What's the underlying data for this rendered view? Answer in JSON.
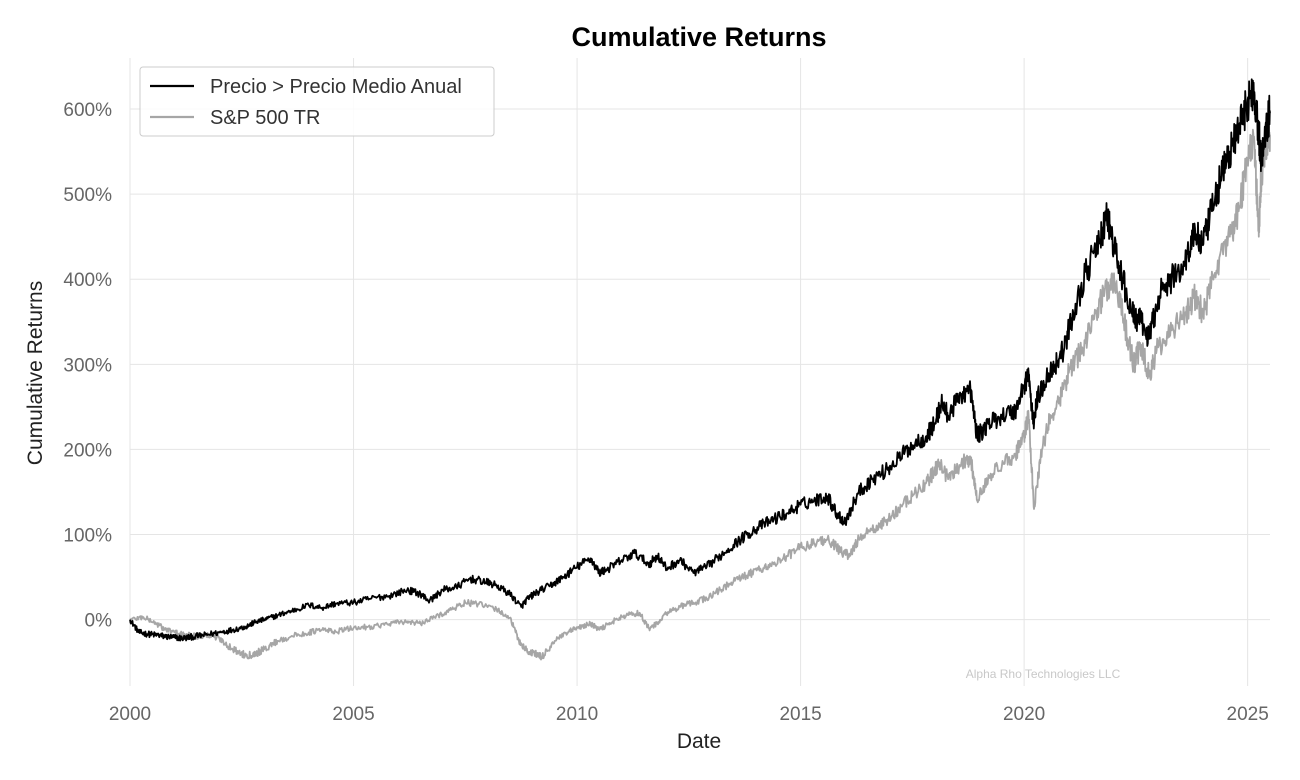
{
  "chart_data": {
    "type": "line",
    "title": "Cumulative Returns",
    "xlabel": "Date",
    "ylabel": "Cumulative Returns",
    "xlim": [
      2000.0,
      2025.5
    ],
    "ylim": [
      -78,
      660
    ],
    "x_ticks": [
      2000,
      2005,
      2010,
      2015,
      2020,
      2025
    ],
    "x_tick_labels": [
      "2000",
      "2005",
      "2010",
      "2015",
      "2020",
      "2025"
    ],
    "y_ticks": [
      0,
      100,
      200,
      300,
      400,
      500,
      600
    ],
    "y_tick_labels": [
      "0%",
      "100%",
      "200%",
      "300%",
      "400%",
      "500%",
      "600%"
    ],
    "grid": true,
    "legend_position": "top-left",
    "watermark": "Alpha Rho Technologies LLC",
    "series": [
      {
        "name": "Precio > Precio Medio Anual",
        "color": "#000000",
        "x": [
          2000.0,
          2000.2,
          2000.4,
          2000.6,
          2000.8,
          2001.0,
          2001.2,
          2001.4,
          2001.7,
          2002.0,
          2002.3,
          2002.6,
          2002.8,
          2003.0,
          2003.3,
          2003.6,
          2004.0,
          2004.3,
          2004.6,
          2005.0,
          2005.4,
          2005.8,
          2006.2,
          2006.5,
          2006.7,
          2007.0,
          2007.3,
          2007.6,
          2007.9,
          2008.2,
          2008.5,
          2008.75,
          2008.9,
          2009.1,
          2009.4,
          2009.7,
          2010.0,
          2010.3,
          2010.5,
          2010.7,
          2011.0,
          2011.3,
          2011.6,
          2011.8,
          2012.0,
          2012.3,
          2012.6,
          2012.9,
          2013.2,
          2013.5,
          2013.8,
          2014.1,
          2014.4,
          2014.7,
          2015.0,
          2015.3,
          2015.6,
          2015.8,
          2016.0,
          2016.3,
          2016.6,
          2016.9,
          2017.2,
          2017.5,
          2017.8,
          2018.0,
          2018.15,
          2018.3,
          2018.6,
          2018.8,
          2018.95,
          2019.2,
          2019.5,
          2019.8,
          2020.0,
          2020.1,
          2020.2,
          2020.3,
          2020.5,
          2020.7,
          2020.9,
          2021.1,
          2021.4,
          2021.7,
          2021.85,
          2022.0,
          2022.2,
          2022.4,
          2022.6,
          2022.8,
          2023.0,
          2023.3,
          2023.6,
          2023.8,
          2024.0,
          2024.2,
          2024.4,
          2024.6,
          2024.8,
          2025.0,
          2025.15,
          2025.25,
          2025.3,
          2025.4,
          2025.5
        ],
        "values": [
          0,
          -15,
          -17,
          -18,
          -20,
          -21,
          -22,
          -20,
          -18,
          -15,
          -12,
          -8,
          -3,
          0,
          5,
          10,
          17,
          14,
          19,
          20,
          25,
          28,
          35,
          30,
          22,
          35,
          38,
          48,
          45,
          40,
          30,
          15,
          25,
          32,
          40,
          50,
          62,
          72,
          55,
          60,
          70,
          78,
          65,
          75,
          60,
          70,
          55,
          62,
          75,
          88,
          100,
          110,
          118,
          125,
          135,
          140,
          145,
          125,
          115,
          150,
          165,
          175,
          190,
          205,
          215,
          230,
          255,
          240,
          265,
          270,
          215,
          230,
          240,
          245,
          275,
          290,
          230,
          260,
          285,
          300,
          320,
          360,
          410,
          445,
          475,
          440,
          400,
          360,
          350,
          330,
          380,
          400,
          420,
          455,
          440,
          480,
          520,
          550,
          575,
          610,
          620,
          570,
          540,
          580,
          595
        ]
      },
      {
        "name": "S&P 500 TR",
        "color": "#a6a6a6",
        "x": [
          2000.0,
          2000.3,
          2000.6,
          2000.8,
          2001.0,
          2001.2,
          2001.5,
          2001.7,
          2002.0,
          2002.3,
          2002.6,
          2002.8,
          2003.0,
          2003.3,
          2003.6,
          2004.0,
          2004.3,
          2004.6,
          2005.0,
          2005.4,
          2005.8,
          2006.2,
          2006.5,
          2006.9,
          2007.2,
          2007.5,
          2007.8,
          2008.2,
          2008.5,
          2008.7,
          2008.9,
          2009.1,
          2009.2,
          2009.5,
          2009.8,
          2010.0,
          2010.3,
          2010.5,
          2010.8,
          2011.1,
          2011.4,
          2011.6,
          2011.8,
          2012.0,
          2012.3,
          2012.6,
          2012.9,
          2013.2,
          2013.5,
          2013.8,
          2014.1,
          2014.4,
          2014.7,
          2015.0,
          2015.3,
          2015.6,
          2015.9,
          2016.1,
          2016.3,
          2016.6,
          2016.9,
          2017.2,
          2017.5,
          2017.8,
          2018.0,
          2018.1,
          2018.3,
          2018.6,
          2018.8,
          2018.95,
          2019.2,
          2019.5,
          2019.8,
          2020.0,
          2020.1,
          2020.22,
          2020.4,
          2020.6,
          2020.8,
          2021.0,
          2021.3,
          2021.6,
          2021.8,
          2022.0,
          2022.2,
          2022.45,
          2022.6,
          2022.8,
          2023.0,
          2023.3,
          2023.6,
          2023.8,
          2024.0,
          2024.3,
          2024.6,
          2024.8,
          2025.0,
          2025.15,
          2025.25,
          2025.3,
          2025.4,
          2025.5
        ],
        "values": [
          0,
          3,
          -5,
          -12,
          -15,
          -18,
          -20,
          -18,
          -22,
          -35,
          -42,
          -40,
          -35,
          -25,
          -20,
          -15,
          -12,
          -14,
          -10,
          -8,
          -5,
          -2,
          -5,
          5,
          12,
          20,
          18,
          12,
          2,
          -25,
          -38,
          -40,
          -45,
          -25,
          -15,
          -10,
          -5,
          -12,
          -2,
          5,
          8,
          -10,
          -5,
          8,
          15,
          20,
          25,
          35,
          45,
          52,
          60,
          65,
          75,
          85,
          90,
          95,
          80,
          75,
          95,
          105,
          115,
          130,
          145,
          160,
          175,
          185,
          165,
          185,
          190,
          140,
          170,
          180,
          195,
          215,
          240,
          130,
          200,
          240,
          260,
          290,
          320,
          360,
          385,
          400,
          360,
          300,
          320,
          290,
          320,
          340,
          360,
          380,
          360,
          410,
          450,
          480,
          540,
          560,
          450,
          520,
          560,
          570
        ]
      }
    ]
  }
}
